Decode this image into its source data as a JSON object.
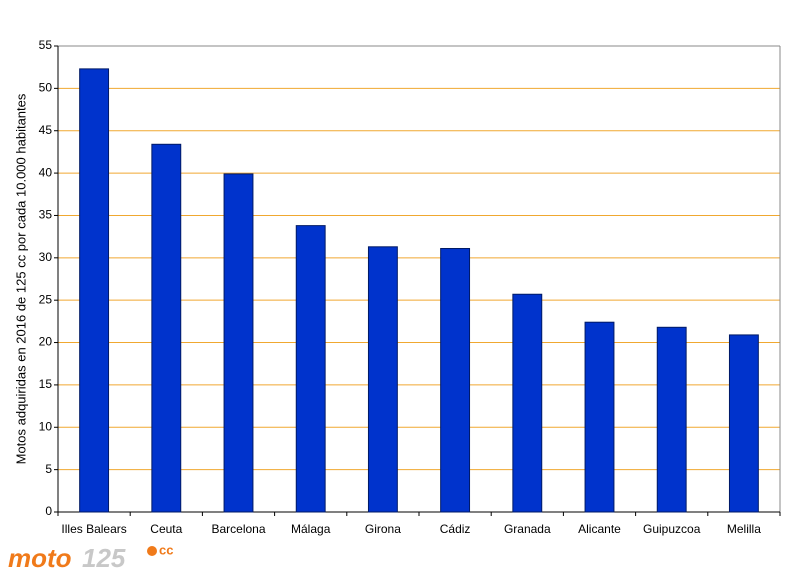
{
  "chart_data": {
    "type": "bar",
    "y_label": "Motos adquiridas en 2016 de 125 cc por cada 10.000 habitantes",
    "categories": [
      "Illes Balears",
      "Ceuta",
      "Barcelona",
      "Málaga",
      "Girona",
      "Cádiz",
      "Granada",
      "Alicante",
      "Guipuzcoa",
      "Melilla"
    ],
    "values": [
      52.3,
      43.4,
      39.9,
      33.8,
      31.3,
      31.1,
      25.7,
      22.4,
      21.8,
      20.9
    ],
    "color": "#0033cc",
    "ylim": [
      0,
      55
    ],
    "yticks": [
      0,
      5,
      10,
      15,
      20,
      25,
      30,
      35,
      40,
      45,
      50,
      55
    ],
    "grid": true
  },
  "logo": {
    "main": "moto",
    "number": "125",
    "suffix": "cc"
  }
}
